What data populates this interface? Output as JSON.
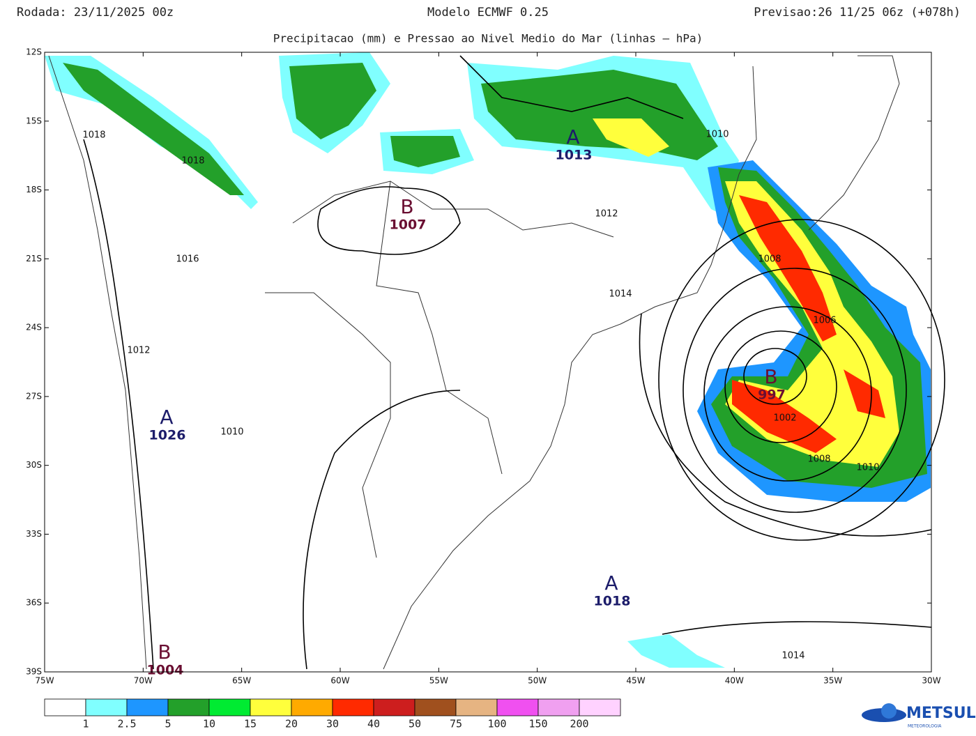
{
  "header": {
    "left": "Rodada: 23/11/2025 00z",
    "center": "Modelo ECMWF 0.25",
    "right": "Previsao:26 11/25 06z (+078h)",
    "subtitle": "Precipitacao (mm) e Pressao ao Nivel Medio do Mar (linhas – hPa)"
  },
  "axes": {
    "lat_labels": [
      "12S",
      "15S",
      "18S",
      "21S",
      "24S",
      "27S",
      "30S",
      "33S",
      "36S",
      "39S"
    ],
    "lon_labels": [
      "75W",
      "70W",
      "65W",
      "60W",
      "55W",
      "50W",
      "45W",
      "40W",
      "35W",
      "30W"
    ]
  },
  "legend": {
    "thresholds": [
      1,
      2.5,
      5,
      10,
      15,
      20,
      30,
      40,
      50,
      75,
      100,
      150,
      200
    ],
    "colors": [
      "#ffffff",
      "#80ffff",
      "#1e96ff",
      "#23a02a",
      "#00eb32",
      "#ffff3c",
      "#ffaa00",
      "#ff2a00",
      "#cd1e1e",
      "#a0501e",
      "#e6b482",
      "#f050f0",
      "#f0a0f0",
      "#ffd2ff"
    ]
  },
  "centers": [
    {
      "letter": "A",
      "pressure": 1026
    },
    {
      "letter": "B",
      "pressure": 1007
    },
    {
      "letter": "A",
      "pressure": 1013
    },
    {
      "letter": "B",
      "pressure": 997
    },
    {
      "letter": "A",
      "pressure": 1018
    },
    {
      "letter": "B",
      "pressure": 1004
    }
  ],
  "isobar_labels": [
    1018,
    1018,
    1016,
    1012,
    1010,
    1010,
    1012,
    1014,
    1008,
    1006,
    1002,
    1008,
    1010,
    1014
  ],
  "logo": {
    "name": "METSUL",
    "tagline": "METEOROLOGIA"
  }
}
